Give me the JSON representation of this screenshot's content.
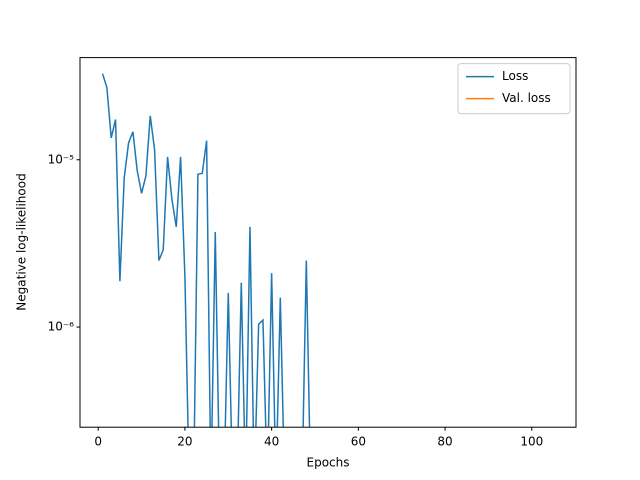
{
  "chart_data": {
    "type": "line",
    "x": [
      1,
      2,
      3,
      4,
      5,
      6,
      7,
      8,
      9,
      10,
      11,
      12,
      13,
      14,
      15,
      16,
      17,
      18,
      19,
      20,
      21,
      22,
      23,
      24,
      25,
      26,
      27,
      28,
      29,
      30,
      31,
      32,
      33,
      34,
      35,
      36,
      37,
      38,
      39,
      40,
      41,
      42,
      43,
      44,
      45,
      46,
      47,
      48,
      49,
      50,
      51,
      52,
      53,
      54,
      55,
      56,
      57,
      58,
      59,
      60,
      61,
      62,
      63,
      64,
      65,
      66,
      67,
      68,
      69,
      70,
      71,
      72,
      73,
      74,
      75,
      76,
      77,
      78,
      79,
      80,
      81,
      82,
      83,
      84,
      85,
      86,
      87,
      88,
      89,
      90,
      91,
      92,
      93,
      94,
      95,
      96,
      97,
      98,
      99,
      100,
      101,
      102,
      103,
      104,
      105
    ],
    "series": [
      {
        "name": "Loss",
        "color": "#1f77b4",
        "values": [
          3.27e-05,
          2.7e-05,
          1.35e-05,
          1.74e-05,
          1.88e-06,
          7.8e-06,
          1.26e-05,
          1.47e-05,
          8.6e-06,
          6.3e-06,
          8e-06,
          1.83e-05,
          1.15e-05,
          2.5e-06,
          2.9e-06,
          1.04e-05,
          5.8e-06,
          3.97e-06,
          1.04e-05,
          2e-06,
          0,
          0,
          8.2e-06,
          8.3e-06,
          1.3e-05,
          0,
          3.7e-06,
          0,
          0,
          1.6e-06,
          0,
          0,
          1.84e-06,
          0,
          3.97e-06,
          0,
          1.04e-06,
          1.1e-06,
          0,
          2.1e-06,
          0,
          1.5e-06,
          0,
          0,
          0,
          0,
          0,
          2.5e-06,
          0,
          0,
          0,
          0,
          0,
          0,
          0,
          0,
          0,
          0,
          0,
          0,
          0,
          0,
          0,
          0,
          0,
          0,
          0,
          0,
          0,
          0,
          0,
          0,
          0,
          0,
          0,
          0,
          0,
          0,
          0,
          0,
          0,
          0,
          0,
          0,
          0,
          0,
          0,
          0,
          0,
          0,
          0,
          0,
          0,
          0,
          0,
          0,
          0,
          0,
          0,
          0,
          0,
          0,
          0,
          0,
          0
        ]
      },
      {
        "name": "Val. loss",
        "color": "#ff7f0e",
        "values": [
          null,
          null,
          null,
          null,
          null,
          null,
          null,
          null,
          null,
          null,
          null,
          null,
          null,
          null,
          null,
          null,
          null,
          null,
          null,
          null,
          null,
          null,
          null,
          null,
          null,
          null,
          null,
          null,
          null,
          null,
          null,
          null,
          null,
          null,
          null,
          null,
          null,
          null,
          null,
          null,
          null,
          null,
          null,
          null,
          null,
          null,
          null,
          null,
          null,
          null,
          null,
          null,
          null,
          null,
          null,
          null,
          null,
          null,
          null,
          null,
          null,
          null,
          null,
          null,
          null,
          null,
          null,
          null,
          null,
          null,
          null,
          null,
          null,
          null,
          null,
          null,
          null,
          null,
          null,
          null,
          null,
          null,
          null,
          null,
          null,
          null,
          null,
          null,
          null,
          null,
          null,
          null,
          null,
          null,
          null,
          null,
          null,
          null,
          null,
          null,
          null,
          null,
          null,
          null,
          null
        ]
      }
    ],
    "xlabel": "Epochs",
    "ylabel": "Negative log-likelihood",
    "xlim": [
      -4.2,
      110.2
    ],
    "xticks": [
      0,
      20,
      40,
      60,
      80,
      100
    ],
    "ylim": [
      2.52e-07,
      4.08e-05
    ],
    "yscale": "log",
    "yticks": [
      {
        "value": 1e-06,
        "label": "10⁻⁶"
      },
      {
        "value": 1e-05,
        "label": "10⁻⁵"
      }
    ],
    "legend": "upper right"
  }
}
